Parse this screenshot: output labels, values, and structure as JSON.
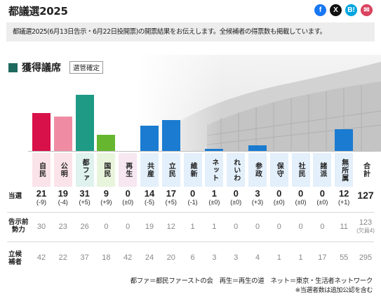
{
  "header": {
    "title": "都議選2025"
  },
  "share": [
    {
      "name": "facebook-share-button",
      "glyph": "f",
      "color": "#1877f2"
    },
    {
      "name": "x-share-button",
      "glyph": "X",
      "color": "#111111"
    },
    {
      "name": "hatena-share-button",
      "glyph": "B!",
      "color": "#00a4de"
    },
    {
      "name": "mail-share-button",
      "glyph": "✉",
      "color": "#d9435f"
    }
  ],
  "notice": "都議選2025(6月13日告示・6月22日投開票)の開票結果をお伝えします。全候補者の得票数も掲載しています。",
  "section": {
    "title": "獲得議席",
    "tag": "選管確定"
  },
  "row_labels": {
    "elected": "当選",
    "prev": "告示前\n勢力",
    "candidates": "立候\n補者"
  },
  "parties": [
    {
      "label": "自民",
      "elected": "21",
      "diff": "(-9)",
      "prev": "30",
      "candidates": "42",
      "color": "#d8114a",
      "label_bg": "#fbe3ea"
    },
    {
      "label": "公明",
      "elected": "19",
      "diff": "(-4)",
      "prev": "23",
      "candidates": "22",
      "color": "#ef8ca4",
      "label_bg": "#fbe3ea"
    },
    {
      "label": "都ファ",
      "elected": "31",
      "diff": "(+5)",
      "prev": "26",
      "candidates": "37",
      "color": "#1e9a85",
      "label_bg": "#dff2ee"
    },
    {
      "label": "国民",
      "elected": "9",
      "diff": "(+9)",
      "prev": "0",
      "candidates": "18",
      "color": "#66b62f",
      "label_bg": "#e9f4dc"
    },
    {
      "label": "再生",
      "elected": "0",
      "diff": "(±0)",
      "prev": "0",
      "candidates": "42",
      "color": "#c98ab6",
      "label_bg": "#f6e7f1"
    },
    {
      "label": "共産",
      "elected": "14",
      "diff": "(-5)",
      "prev": "19",
      "candidates": "24",
      "color": "#1a7bd0",
      "label_bg": "#e3effa"
    },
    {
      "label": "立民",
      "elected": "17",
      "diff": "(+5)",
      "prev": "12",
      "candidates": "20",
      "color": "#1a7bd0",
      "label_bg": "#e3effa"
    },
    {
      "label": "維新",
      "elected": "0",
      "diff": "(-1)",
      "prev": "1",
      "candidates": "6",
      "color": "#1a7bd0",
      "label_bg": "#e3effa"
    },
    {
      "label": "ネット",
      "elected": "1",
      "diff": "(±0)",
      "prev": "1",
      "candidates": "3",
      "color": "#1a7bd0",
      "label_bg": "#e3effa"
    },
    {
      "label": "れいわ",
      "elected": "0",
      "diff": "(±0)",
      "prev": "0",
      "candidates": "3",
      "color": "#1a7bd0",
      "label_bg": "#e3effa"
    },
    {
      "label": "参政",
      "elected": "3",
      "diff": "(+3)",
      "prev": "0",
      "candidates": "4",
      "color": "#1a7bd0",
      "label_bg": "#e3effa"
    },
    {
      "label": "保守",
      "elected": "0",
      "diff": "(±0)",
      "prev": "0",
      "candidates": "1",
      "color": "#1a7bd0",
      "label_bg": "#e3effa"
    },
    {
      "label": "社民",
      "elected": "0",
      "diff": "(±0)",
      "prev": "0",
      "candidates": "1",
      "color": "#1a7bd0",
      "label_bg": "#e3effa"
    },
    {
      "label": "諸派",
      "elected": "0",
      "diff": "(±0)",
      "prev": "0",
      "candidates": "17",
      "color": "#1a7bd0",
      "label_bg": "#e3effa"
    },
    {
      "label": "無所属",
      "elected": "12",
      "diff": "(+1)",
      "prev": "11",
      "candidates": "55",
      "color": "#1a7bd0",
      "label_bg": "#e3effa"
    }
  ],
  "total": {
    "label": "合計",
    "elected": "127",
    "prev": "123",
    "prev_note": "(欠員4)",
    "candidates": "295"
  },
  "legend": "都ファ＝都民ファーストの会　再生＝再生の道　ネット＝東京・生活者ネットワーク",
  "note": "※当選者数は追加公認を含む"
}
